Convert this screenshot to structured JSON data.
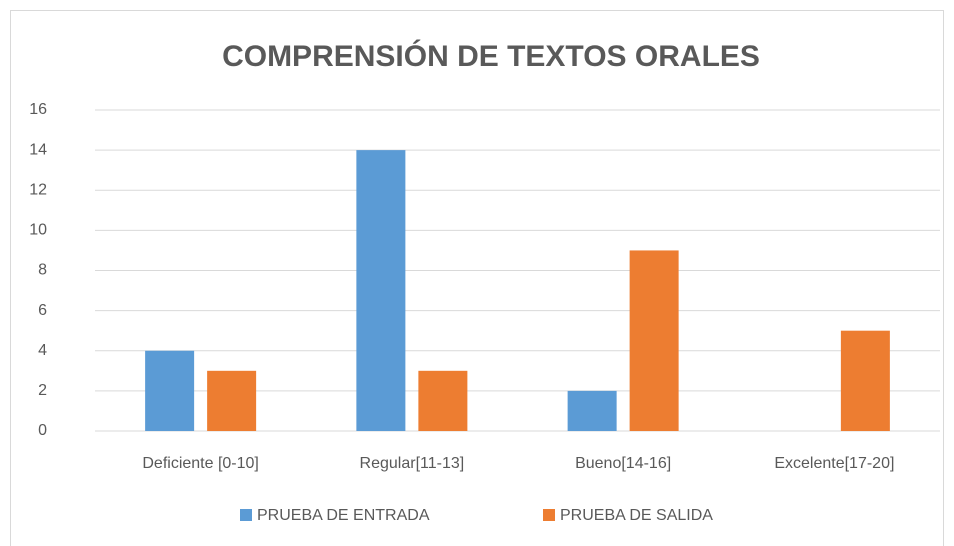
{
  "chart_data": {
    "type": "bar",
    "title": "COMPRENSIÓN DE TEXTOS ORALES",
    "categories": [
      "Deficiente [0-10]",
      "Regular[11-13]",
      "Bueno[14-16]",
      "Excelente[17-20]"
    ],
    "series": [
      {
        "name": "PRUEBA DE ENTRADA",
        "color": "#5b9bd5",
        "values": [
          4,
          14,
          2,
          0
        ]
      },
      {
        "name": "PRUEBA DE SALIDA",
        "color": "#ed7d31",
        "values": [
          3,
          3,
          9,
          5
        ]
      }
    ],
    "ylim": [
      0,
      16
    ],
    "yticks": [
      0,
      2,
      4,
      6,
      8,
      10,
      12,
      14,
      16
    ],
    "grid": true,
    "legend": "bottom"
  }
}
